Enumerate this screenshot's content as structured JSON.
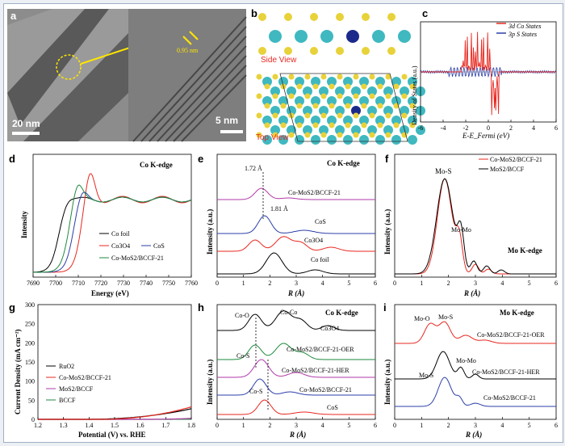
{
  "figure": {
    "panel_letters": [
      "a",
      "b",
      "c",
      "d",
      "e",
      "f",
      "g",
      "h",
      "i"
    ],
    "a": {
      "scale_left": "20 nm",
      "scale_right": "5 nm",
      "spacing": "0.95 nm"
    },
    "b": {
      "side_view": "Side View",
      "top_view": "Top View"
    },
    "c": {
      "legend": [
        "3d Co States",
        "3p S States"
      ],
      "xlabel": "E-E_Fermi (eV)",
      "ylabel": "Density of States (a.u.)",
      "xticks": [
        "-6",
        "-4",
        "-2",
        "0",
        "2",
        "4",
        "6"
      ]
    },
    "d": {
      "title": "Co K-edge",
      "xlabel": "Energy (eV)",
      "ylabel": "Intensity",
      "xticks": [
        "7690",
        "7700",
        "7710",
        "7720",
        "7730",
        "7740",
        "7750",
        "7760"
      ],
      "legend": [
        "Co foil",
        "Co3O4",
        "CoS",
        "Co-MoS2/BCCF-21"
      ]
    },
    "e": {
      "title": "Co K-edge",
      "xlabel": "R (Å)",
      "ylabel": "Intensity (a.u.)",
      "xticks": [
        "0",
        "1",
        "2",
        "3",
        "4",
        "5",
        "6"
      ],
      "labels": [
        "1.72 Å",
        "1.81 Å",
        "Co-MoS2/BCCF-21",
        "CoS",
        "Co3O4",
        "Co foil"
      ]
    },
    "f": {
      "title": "Mo K-edge",
      "xlabel": "R (Å)",
      "ylabel": "Intensity (a.u.)",
      "xticks": [
        "0",
        "1",
        "2",
        "3",
        "4",
        "5",
        "6"
      ],
      "legend": [
        "Co-MoS2/BCCF-21",
        "MoS2/BCCF"
      ],
      "labels": [
        "Mo-S",
        "Mo-Mo"
      ]
    },
    "g": {
      "xlabel": "Potential (V) vs. RHE",
      "ylabel": "Current Density (mA cm⁻²)",
      "xticks": [
        "1.2",
        "1.3",
        "1.4",
        "1.5",
        "1.6",
        "1.7",
        "1.8"
      ],
      "yticks": [
        "0",
        "50",
        "100",
        "150",
        "200",
        "250",
        "300"
      ],
      "legend": [
        "RuO2",
        "Co-MoS2/BCCF-21",
        "MoS2/BCCF",
        "BCCF"
      ]
    },
    "h": {
      "title": "Co K-edge",
      "xlabel": "R (Å)",
      "ylabel": "Intensity (a.u.)",
      "xticks": [
        "0",
        "1",
        "2",
        "3",
        "4",
        "5",
        "6"
      ],
      "labels": [
        "Co-O",
        "Co-Co",
        "Co3O4",
        "Co-MoS2/BCCF-21-OER",
        "Co-S",
        "Co-MoS2/BCCF-21-HER",
        "Co-MoS2/BCCF-21",
        "Co-S",
        "CoS"
      ]
    },
    "i": {
      "title": "Mo K-edge",
      "xlabel": "R (Å)",
      "ylabel": "Intensity (a.u.)",
      "xticks": [
        "0",
        "1",
        "2",
        "3",
        "4",
        "5",
        "6"
      ],
      "labels": [
        "Mo-O",
        "Mo-S",
        "Co-MoS2/BCCF-21-OER",
        "Mo-S",
        "Mo-Mo",
        "Co-MoS2/BCCF-21-HER",
        "Co-MoS2/BCCF-21"
      ]
    }
  },
  "colors": {
    "black": "#000000",
    "red": "#e8271f",
    "blue": "#2b3fa8",
    "green": "#1e8a3c",
    "purple": "#b23aa8",
    "teal": "#3fb8c0",
    "yellow": "#e8d23a",
    "navy": "#1b2a8a"
  }
}
